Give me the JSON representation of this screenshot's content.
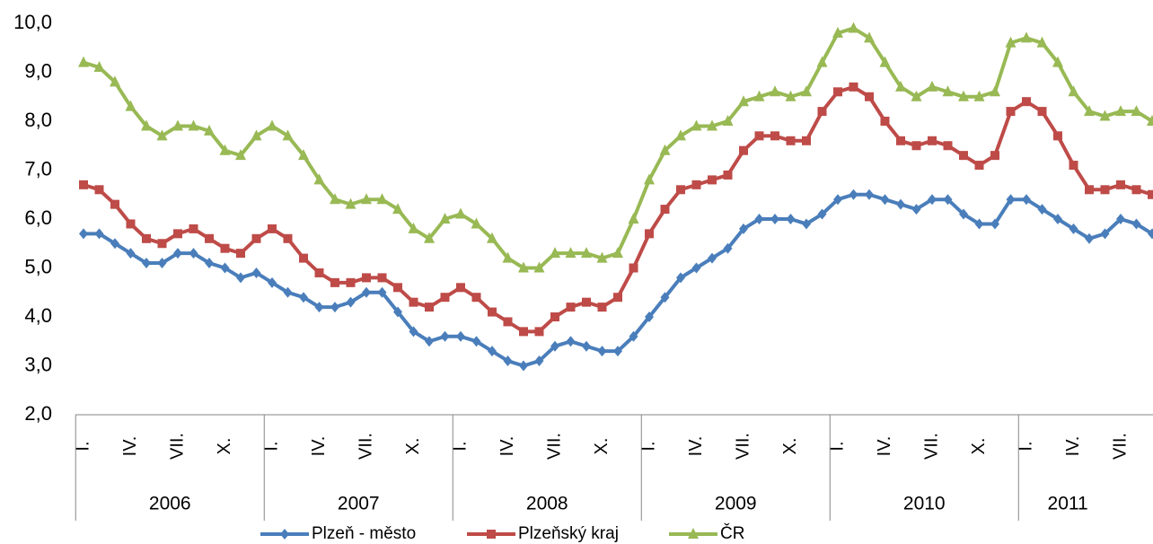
{
  "chart_data": {
    "type": "line",
    "categories": [
      "I.",
      null,
      null,
      "IV.",
      null,
      null,
      "VII.",
      null,
      null,
      "X.",
      null,
      null,
      "I.",
      null,
      null,
      "IV.",
      null,
      null,
      "VII.",
      null,
      null,
      "X.",
      null,
      null,
      "I.",
      null,
      null,
      "IV.",
      null,
      null,
      "VII.",
      null,
      null,
      "X.",
      null,
      null,
      "I.",
      null,
      null,
      "IV.",
      null,
      null,
      "VII.",
      null,
      null,
      "X.",
      null,
      null,
      "I.",
      null,
      null,
      "IV.",
      null,
      null,
      "VII.",
      null,
      null,
      "X.",
      null,
      null,
      "I.",
      null,
      null,
      "IV.",
      null,
      null,
      "VII.",
      null,
      null
    ],
    "years": [
      "2006",
      "2007",
      "2008",
      "2009",
      "2010",
      "2011"
    ],
    "series": [
      {
        "name": "Plzeň - město",
        "color": "#4a7ebb",
        "marker": "diamond",
        "values": [
          5.7,
          5.7,
          5.5,
          5.3,
          5.1,
          5.1,
          5.3,
          5.3,
          5.1,
          5.0,
          4.8,
          4.9,
          4.7,
          4.5,
          4.4,
          4.2,
          4.2,
          4.3,
          4.5,
          4.5,
          4.1,
          3.7,
          3.5,
          3.6,
          3.6,
          3.5,
          3.3,
          3.1,
          3.0,
          3.1,
          3.4,
          3.5,
          3.4,
          3.3,
          3.3,
          3.6,
          4.0,
          4.4,
          4.8,
          5.0,
          5.2,
          5.4,
          5.8,
          6.0,
          6.0,
          6.0,
          5.9,
          6.1,
          6.4,
          6.5,
          6.5,
          6.4,
          6.3,
          6.2,
          6.4,
          6.4,
          6.1,
          5.9,
          5.9,
          6.4,
          6.4,
          6.2,
          6.0,
          5.8,
          5.6,
          5.7,
          6.0,
          5.9,
          5.7
        ]
      },
      {
        "name": "Plzeňský kraj",
        "color": "#be4b48",
        "marker": "square",
        "values": [
          6.7,
          6.6,
          6.3,
          5.9,
          5.6,
          5.5,
          5.7,
          5.8,
          5.6,
          5.4,
          5.3,
          5.6,
          5.8,
          5.6,
          5.2,
          4.9,
          4.7,
          4.7,
          4.8,
          4.8,
          4.6,
          4.3,
          4.2,
          4.4,
          4.6,
          4.4,
          4.1,
          3.9,
          3.7,
          3.7,
          4.0,
          4.2,
          4.3,
          4.2,
          4.4,
          5.0,
          5.7,
          6.2,
          6.6,
          6.7,
          6.8,
          6.9,
          7.4,
          7.7,
          7.7,
          7.6,
          7.6,
          8.2,
          8.6,
          8.7,
          8.5,
          8.0,
          7.6,
          7.5,
          7.6,
          7.5,
          7.3,
          7.1,
          7.3,
          8.2,
          8.4,
          8.2,
          7.7,
          7.1,
          6.6,
          6.6,
          6.7,
          6.6,
          6.5
        ]
      },
      {
        "name": "ČR",
        "color": "#98b954",
        "marker": "triangle",
        "values": [
          9.2,
          9.1,
          8.8,
          8.3,
          7.9,
          7.7,
          7.9,
          7.9,
          7.8,
          7.4,
          7.3,
          7.7,
          7.9,
          7.7,
          7.3,
          6.8,
          6.4,
          6.3,
          6.4,
          6.4,
          6.2,
          5.8,
          5.6,
          6.0,
          6.1,
          5.9,
          5.6,
          5.2,
          5.0,
          5.0,
          5.3,
          5.3,
          5.3,
          5.2,
          5.3,
          6.0,
          6.8,
          7.4,
          7.7,
          7.9,
          7.9,
          8.0,
          8.4,
          8.5,
          8.6,
          8.5,
          8.6,
          9.2,
          9.8,
          9.9,
          9.7,
          9.2,
          8.7,
          8.5,
          8.7,
          8.6,
          8.5,
          8.5,
          8.6,
          9.6,
          9.7,
          9.6,
          9.2,
          8.6,
          8.2,
          8.1,
          8.2,
          8.2,
          8.0
        ]
      }
    ],
    "ylim": [
      2,
      10
    ],
    "yticks": [
      {
        "value": 2,
        "label": "2,0"
      },
      {
        "value": 3,
        "label": "3,0"
      },
      {
        "value": 4,
        "label": "4,0"
      },
      {
        "value": 5,
        "label": "5,0"
      },
      {
        "value": 6,
        "label": "6,0"
      },
      {
        "value": 7,
        "label": "7,0"
      },
      {
        "value": 8,
        "label": "8,0"
      },
      {
        "value": 9,
        "label": "9,0"
      },
      {
        "value": 10,
        "label": "10,0"
      }
    ],
    "legend": "bottom"
  }
}
